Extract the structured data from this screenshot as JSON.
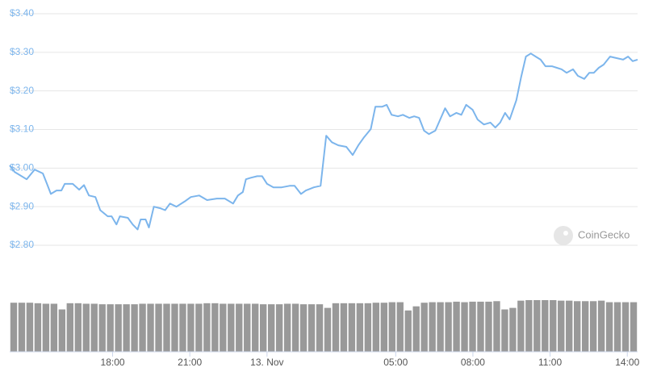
{
  "chart_data": [
    {
      "type": "line",
      "watermark": "CoinGecko",
      "color": "#7cb5ec",
      "grid": true,
      "xlim": [
        -10,
        14.4
      ],
      "xticks": [
        {
          "value": -6,
          "label": "18:00"
        },
        {
          "value": -3,
          "label": "21:00"
        },
        {
          "value": 0,
          "label": "13. Nov"
        },
        {
          "value": 5,
          "label": "05:00"
        },
        {
          "value": 8,
          "label": "08:00"
        },
        {
          "value": 11,
          "label": "11:00"
        },
        {
          "value": 14,
          "label": "14:00"
        }
      ],
      "ylim": [
        2.8,
        3.4
      ],
      "yticks": [
        {
          "value": 2.8,
          "label": "$2.80"
        },
        {
          "value": 2.9,
          "label": "$2.90"
        },
        {
          "value": 3.0,
          "label": "$3.00"
        },
        {
          "value": 3.1,
          "label": "$3.10"
        },
        {
          "value": 3.2,
          "label": "$3.20"
        },
        {
          "value": 3.3,
          "label": "$3.30"
        },
        {
          "value": 3.4,
          "label": "$3.40"
        }
      ],
      "x": [
        -10,
        -9.81,
        -9.34,
        -9.03,
        -8.71,
        -8.55,
        -8.4,
        -8.18,
        -7.99,
        -7.86,
        -7.55,
        -7.3,
        -7.11,
        -6.92,
        -6.67,
        -6.48,
        -6.19,
        -6.04,
        -5.85,
        -5.72,
        -5.41,
        -5.22,
        -5.03,
        -4.91,
        -4.72,
        -4.59,
        -4.4,
        -4.15,
        -3.96,
        -3.77,
        -3.52,
        -3.21,
        -2.96,
        -2.64,
        -2.33,
        -1.95,
        -1.64,
        -1.32,
        -1.13,
        -0.94,
        -0.82,
        -0.63,
        -0.38,
        -0.19,
        0,
        0.25,
        0.57,
        0.88,
        1.07,
        1.32,
        1.51,
        1.82,
        2.08,
        2.3,
        2.52,
        2.77,
        3.08,
        3.33,
        3.55,
        3.77,
        4.03,
        4.21,
        4.47,
        4.65,
        4.84,
        5.09,
        5.28,
        5.53,
        5.72,
        5.91,
        6.1,
        6.29,
        6.54,
        6.73,
        6.92,
        7.11,
        7.36,
        7.55,
        7.74,
        7.99,
        8.18,
        8.43,
        8.68,
        8.87,
        9.06,
        9.25,
        9.43,
        9.69,
        9.87,
        10.06,
        10.25,
        10.44,
        10.63,
        10.82,
        11.07,
        11.26,
        11.45,
        11.64,
        11.89,
        12.08,
        12.33,
        12.52,
        12.7,
        12.89,
        13.08,
        13.33,
        13.58,
        13.84,
        14.03,
        14.21,
        14.4
      ],
      "values": [
        3.007,
        2.99,
        2.971,
        2.996,
        2.986,
        2.959,
        2.933,
        2.942,
        2.942,
        2.959,
        2.959,
        2.944,
        2.956,
        2.929,
        2.925,
        2.891,
        2.875,
        2.875,
        2.854,
        2.875,
        2.871,
        2.854,
        2.841,
        2.867,
        2.867,
        2.846,
        2.9,
        2.896,
        2.891,
        2.908,
        2.9,
        2.913,
        2.925,
        2.929,
        2.917,
        2.921,
        2.921,
        2.908,
        2.929,
        2.938,
        2.971,
        2.975,
        2.979,
        2.979,
        2.959,
        2.95,
        2.95,
        2.954,
        2.954,
        2.933,
        2.942,
        2.95,
        2.954,
        3.084,
        3.067,
        3.059,
        3.055,
        3.034,
        3.059,
        3.08,
        3.101,
        3.159,
        3.159,
        3.164,
        3.138,
        3.134,
        3.138,
        3.13,
        3.134,
        3.13,
        3.097,
        3.088,
        3.097,
        3.126,
        3.155,
        3.134,
        3.143,
        3.138,
        3.164,
        3.151,
        3.126,
        3.113,
        3.118,
        3.105,
        3.118,
        3.143,
        3.126,
        3.176,
        3.235,
        3.289,
        3.297,
        3.289,
        3.281,
        3.264,
        3.264,
        3.26,
        3.256,
        3.247,
        3.256,
        3.239,
        3.231,
        3.247,
        3.247,
        3.26,
        3.268,
        3.289,
        3.285,
        3.281,
        3.289,
        3.277,
        3.281
      ]
    },
    {
      "type": "bar",
      "color": "#999999",
      "ylim": [
        0,
        100
      ],
      "values": [
        95,
        95,
        95,
        94,
        93,
        93,
        82,
        94,
        94,
        93,
        93,
        92,
        92,
        92,
        92,
        92,
        93,
        93,
        93,
        93,
        93,
        93,
        93,
        93,
        94,
        94,
        93,
        93,
        93,
        93,
        93,
        92,
        92,
        92,
        93,
        93,
        92,
        92,
        92,
        85,
        94,
        94,
        94,
        94,
        94,
        95,
        95,
        96,
        96,
        80,
        88,
        95,
        96,
        96,
        96,
        97,
        96,
        97,
        97,
        97,
        98,
        82,
        85,
        99,
        100,
        100,
        100,
        100,
        99,
        99,
        98,
        98,
        98,
        99,
        96,
        96,
        96,
        96
      ]
    }
  ]
}
